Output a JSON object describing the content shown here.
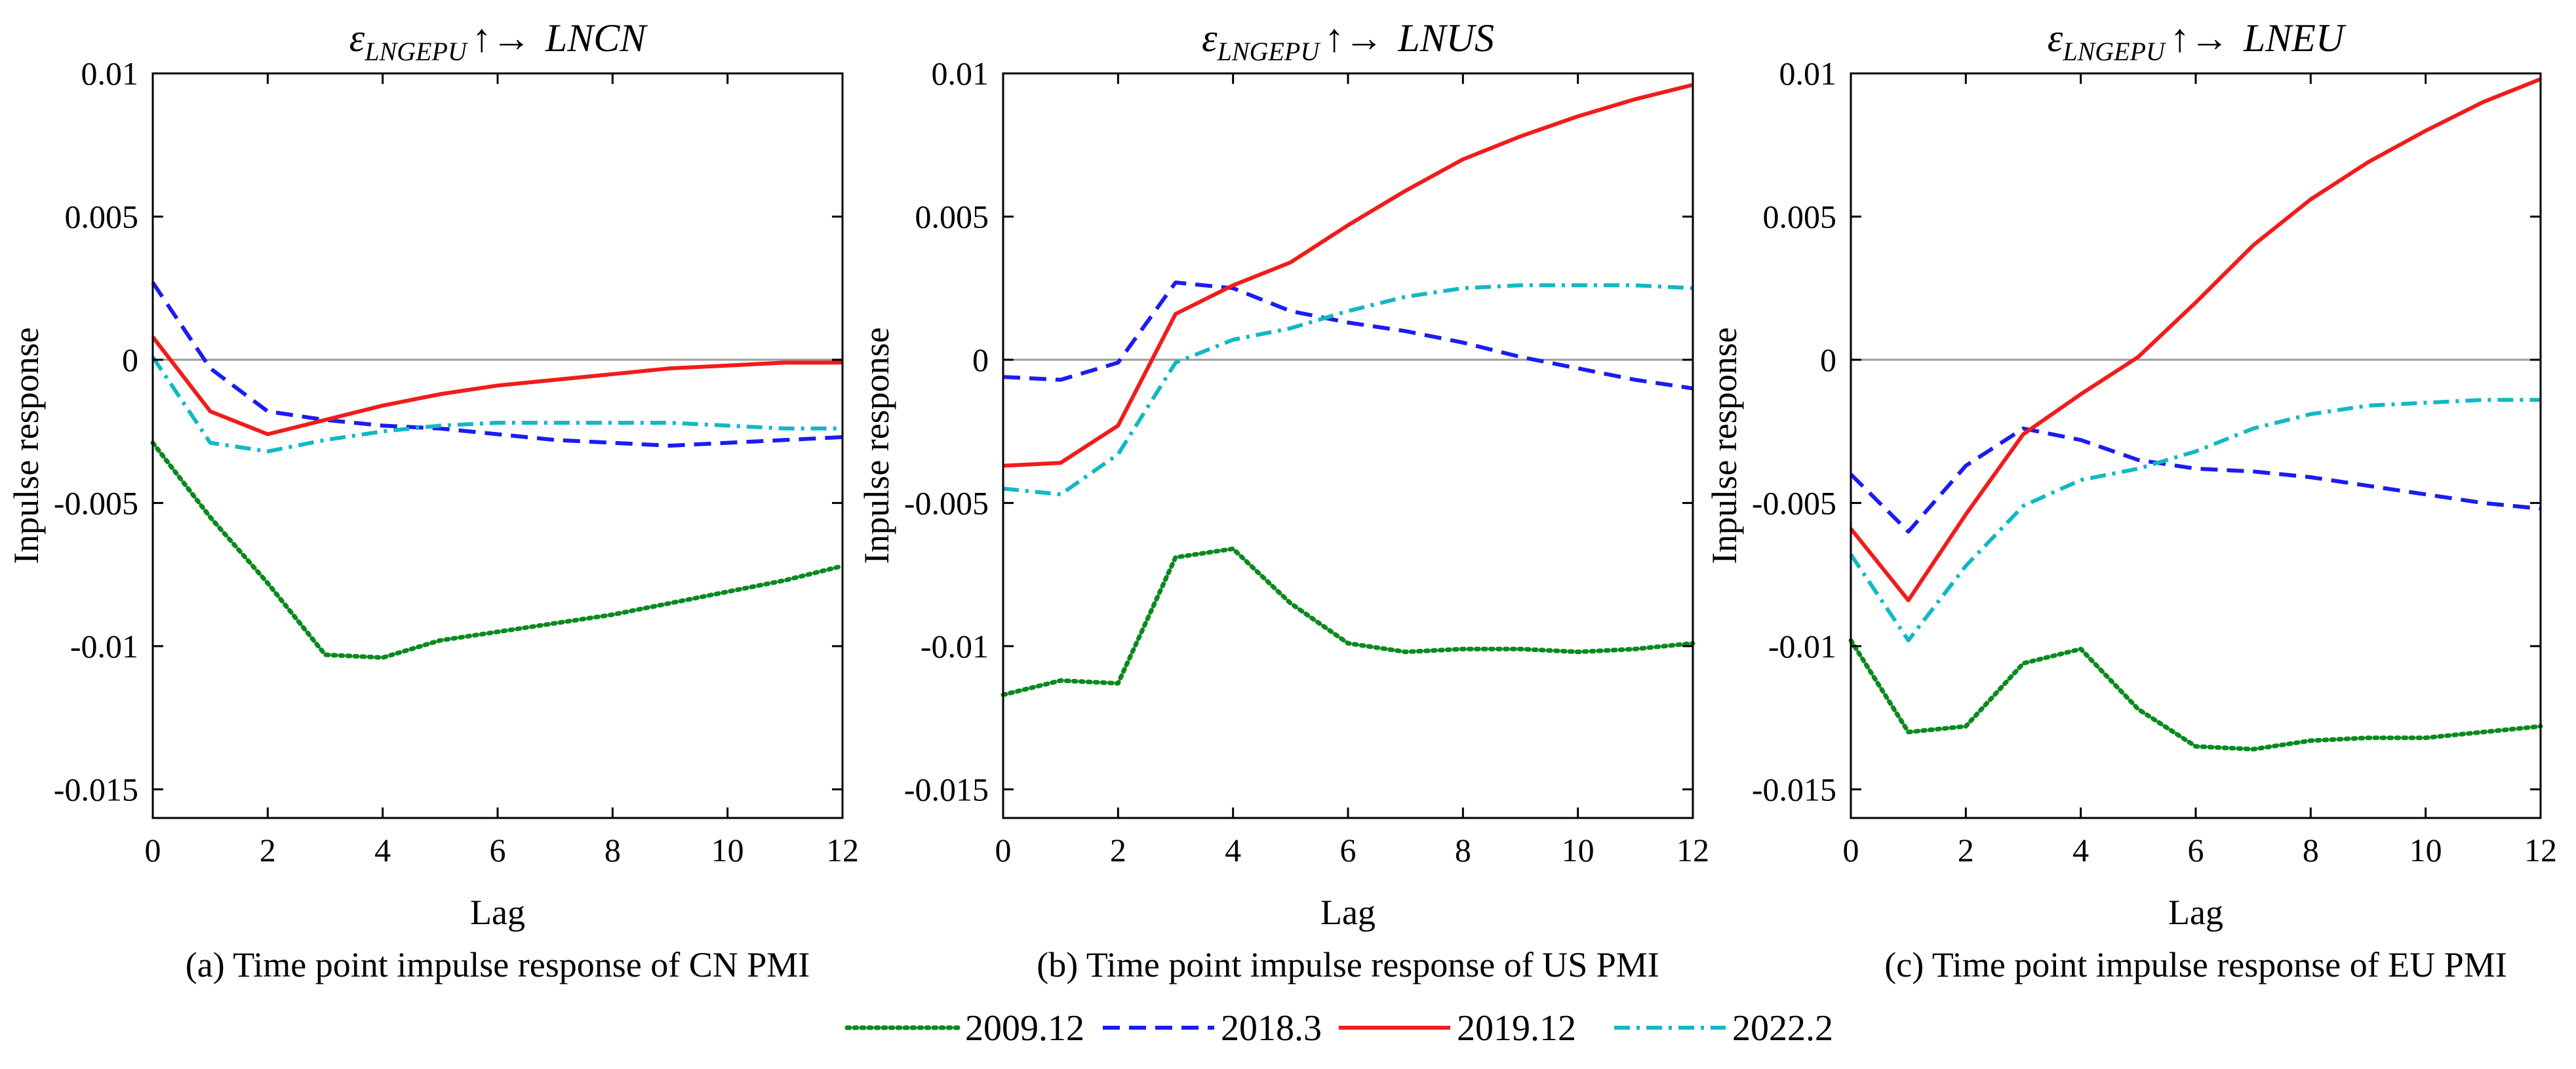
{
  "legend": [
    {
      "label": "2009.12",
      "color": "#0a8a1e",
      "dash": "dotted"
    },
    {
      "label": "2018.3",
      "color": "#1c1cf0",
      "dash": "dashed"
    },
    {
      "label": "2019.12",
      "color": "#f01c1c",
      "dash": "solid"
    },
    {
      "label": "2022.2",
      "color": "#12b8c4",
      "dash": "dashdot"
    }
  ],
  "chart_data": [
    {
      "type": "line",
      "title_sub": "LNGEPU",
      "title_arrow": "↑→",
      "title_target": "LNCN",
      "caption": "(a) Time point impulse response of CN PMI",
      "xlabel": "Lag",
      "ylabel": "Inpulse response",
      "x": [
        0,
        1,
        2,
        3,
        4,
        5,
        6,
        7,
        8,
        9,
        10,
        11,
        12
      ],
      "xticks": [
        0,
        2,
        4,
        6,
        8,
        10,
        12
      ],
      "xtick_labels": [
        "0",
        "2",
        "4",
        "6",
        "8",
        "10",
        "12"
      ],
      "ylim": [
        -0.016,
        0.01
      ],
      "yticks": [
        0.01,
        0.005,
        0,
        -0.005,
        -0.01,
        -0.015
      ],
      "ytick_labels": [
        "0.01",
        "0.005",
        "0",
        "-0.005",
        "-0.01",
        "-0.015"
      ],
      "zero_line": true,
      "series": [
        {
          "name": "2009.12",
          "values": [
            -0.0029,
            -0.0055,
            -0.0078,
            -0.0103,
            -0.0104,
            -0.0098,
            -0.0095,
            -0.0092,
            -0.0089,
            -0.0085,
            -0.0081,
            -0.0077,
            -0.0072
          ]
        },
        {
          "name": "2018.3",
          "values": [
            0.0027,
            -0.0003,
            -0.0018,
            -0.0021,
            -0.0023,
            -0.0024,
            -0.0026,
            -0.0028,
            -0.0029,
            -0.003,
            -0.0029,
            -0.0028,
            -0.0027
          ]
        },
        {
          "name": "2019.12",
          "values": [
            0.0008,
            -0.0018,
            -0.0026,
            -0.0021,
            -0.0016,
            -0.0012,
            -0.0009,
            -0.0007,
            -0.0005,
            -0.0003,
            -0.0002,
            -0.0001,
            -0.0001
          ]
        },
        {
          "name": "2022.2",
          "values": [
            0.0001,
            -0.0029,
            -0.0032,
            -0.0028,
            -0.0025,
            -0.0023,
            -0.0022,
            -0.0022,
            -0.0022,
            -0.0022,
            -0.0023,
            -0.0024,
            -0.0024
          ]
        }
      ]
    },
    {
      "type": "line",
      "title_sub": "LNGEPU",
      "title_arrow": "↑→",
      "title_target": "LNUS",
      "caption": "(b) Time point impulse response of US PMI",
      "xlabel": "Lag",
      "ylabel": "Inpulse response",
      "x": [
        0,
        1,
        2,
        3,
        4,
        5,
        6,
        7,
        8,
        9,
        10,
        11,
        12
      ],
      "xticks": [
        0,
        2,
        4,
        6,
        8,
        10,
        12
      ],
      "xtick_labels": [
        "0",
        "2",
        "4",
        "6",
        "8",
        "10",
        "12"
      ],
      "ylim": [
        -0.016,
        0.01
      ],
      "yticks": [
        0.01,
        0.005,
        0,
        -0.005,
        -0.01,
        -0.015
      ],
      "ytick_labels": [
        "0.01",
        "0.005",
        "0",
        "-0.005",
        "-0.01",
        "-0.015"
      ],
      "zero_line": true,
      "series": [
        {
          "name": "2009.12",
          "values": [
            -0.0117,
            -0.0112,
            -0.0113,
            -0.0069,
            -0.0066,
            -0.0085,
            -0.0099,
            -0.0102,
            -0.0101,
            -0.0101,
            -0.0102,
            -0.0101,
            -0.0099
          ]
        },
        {
          "name": "2018.3",
          "values": [
            -0.0006,
            -0.0007,
            -0.0001,
            0.0027,
            0.0025,
            0.0017,
            0.0013,
            0.001,
            0.0006,
            0.0001,
            -0.0003,
            -0.0007,
            -0.001
          ]
        },
        {
          "name": "2019.12",
          "values": [
            -0.0037,
            -0.0036,
            -0.0023,
            0.0016,
            0.0026,
            0.0034,
            0.0047,
            0.0059,
            0.007,
            0.0078,
            0.0085,
            0.0091,
            0.0096
          ]
        },
        {
          "name": "2022.2",
          "values": [
            -0.0045,
            -0.0047,
            -0.0033,
            -0.0001,
            0.0007,
            0.0011,
            0.0017,
            0.0022,
            0.0025,
            0.0026,
            0.0026,
            0.0026,
            0.0025
          ]
        }
      ]
    },
    {
      "type": "line",
      "title_sub": "LNGEPU",
      "title_arrow": "↑→",
      "title_target": "LNEU",
      "caption": "(c) Time point impulse response of EU PMI",
      "xlabel": "Lag",
      "ylabel": "Inpulse response",
      "x": [
        0,
        1,
        2,
        3,
        4,
        5,
        6,
        7,
        8,
        9,
        10,
        11,
        12
      ],
      "xticks": [
        0,
        2,
        4,
        6,
        8,
        10,
        12
      ],
      "xtick_labels": [
        "0",
        "2",
        "4",
        "6",
        "8",
        "10",
        "12"
      ],
      "ylim": [
        -0.016,
        0.01
      ],
      "yticks": [
        0.01,
        0.005,
        0,
        -0.005,
        -0.01,
        -0.015
      ],
      "ytick_labels": [
        "0.01",
        "0.005",
        "0",
        "-0.005",
        "-0.01",
        "-0.015"
      ],
      "zero_line": true,
      "series": [
        {
          "name": "2009.12",
          "values": [
            -0.0098,
            -0.013,
            -0.0128,
            -0.0106,
            -0.0101,
            -0.0122,
            -0.0135,
            -0.0136,
            -0.0133,
            -0.0132,
            -0.0132,
            -0.013,
            -0.0128
          ]
        },
        {
          "name": "2018.3",
          "values": [
            -0.004,
            -0.006,
            -0.0037,
            -0.0024,
            -0.0028,
            -0.0035,
            -0.0038,
            -0.0039,
            -0.0041,
            -0.0044,
            -0.0047,
            -0.005,
            -0.0052
          ]
        },
        {
          "name": "2019.12",
          "values": [
            -0.0059,
            -0.0084,
            -0.0054,
            -0.0026,
            -0.0012,
            0.0001,
            0.002,
            0.004,
            0.0056,
            0.0069,
            0.008,
            0.009,
            0.0098
          ]
        },
        {
          "name": "2022.2",
          "values": [
            -0.0068,
            -0.0098,
            -0.0072,
            -0.0051,
            -0.0042,
            -0.0038,
            -0.0032,
            -0.0024,
            -0.0019,
            -0.0016,
            -0.0015,
            -0.0014,
            -0.0014
          ]
        }
      ]
    }
  ]
}
